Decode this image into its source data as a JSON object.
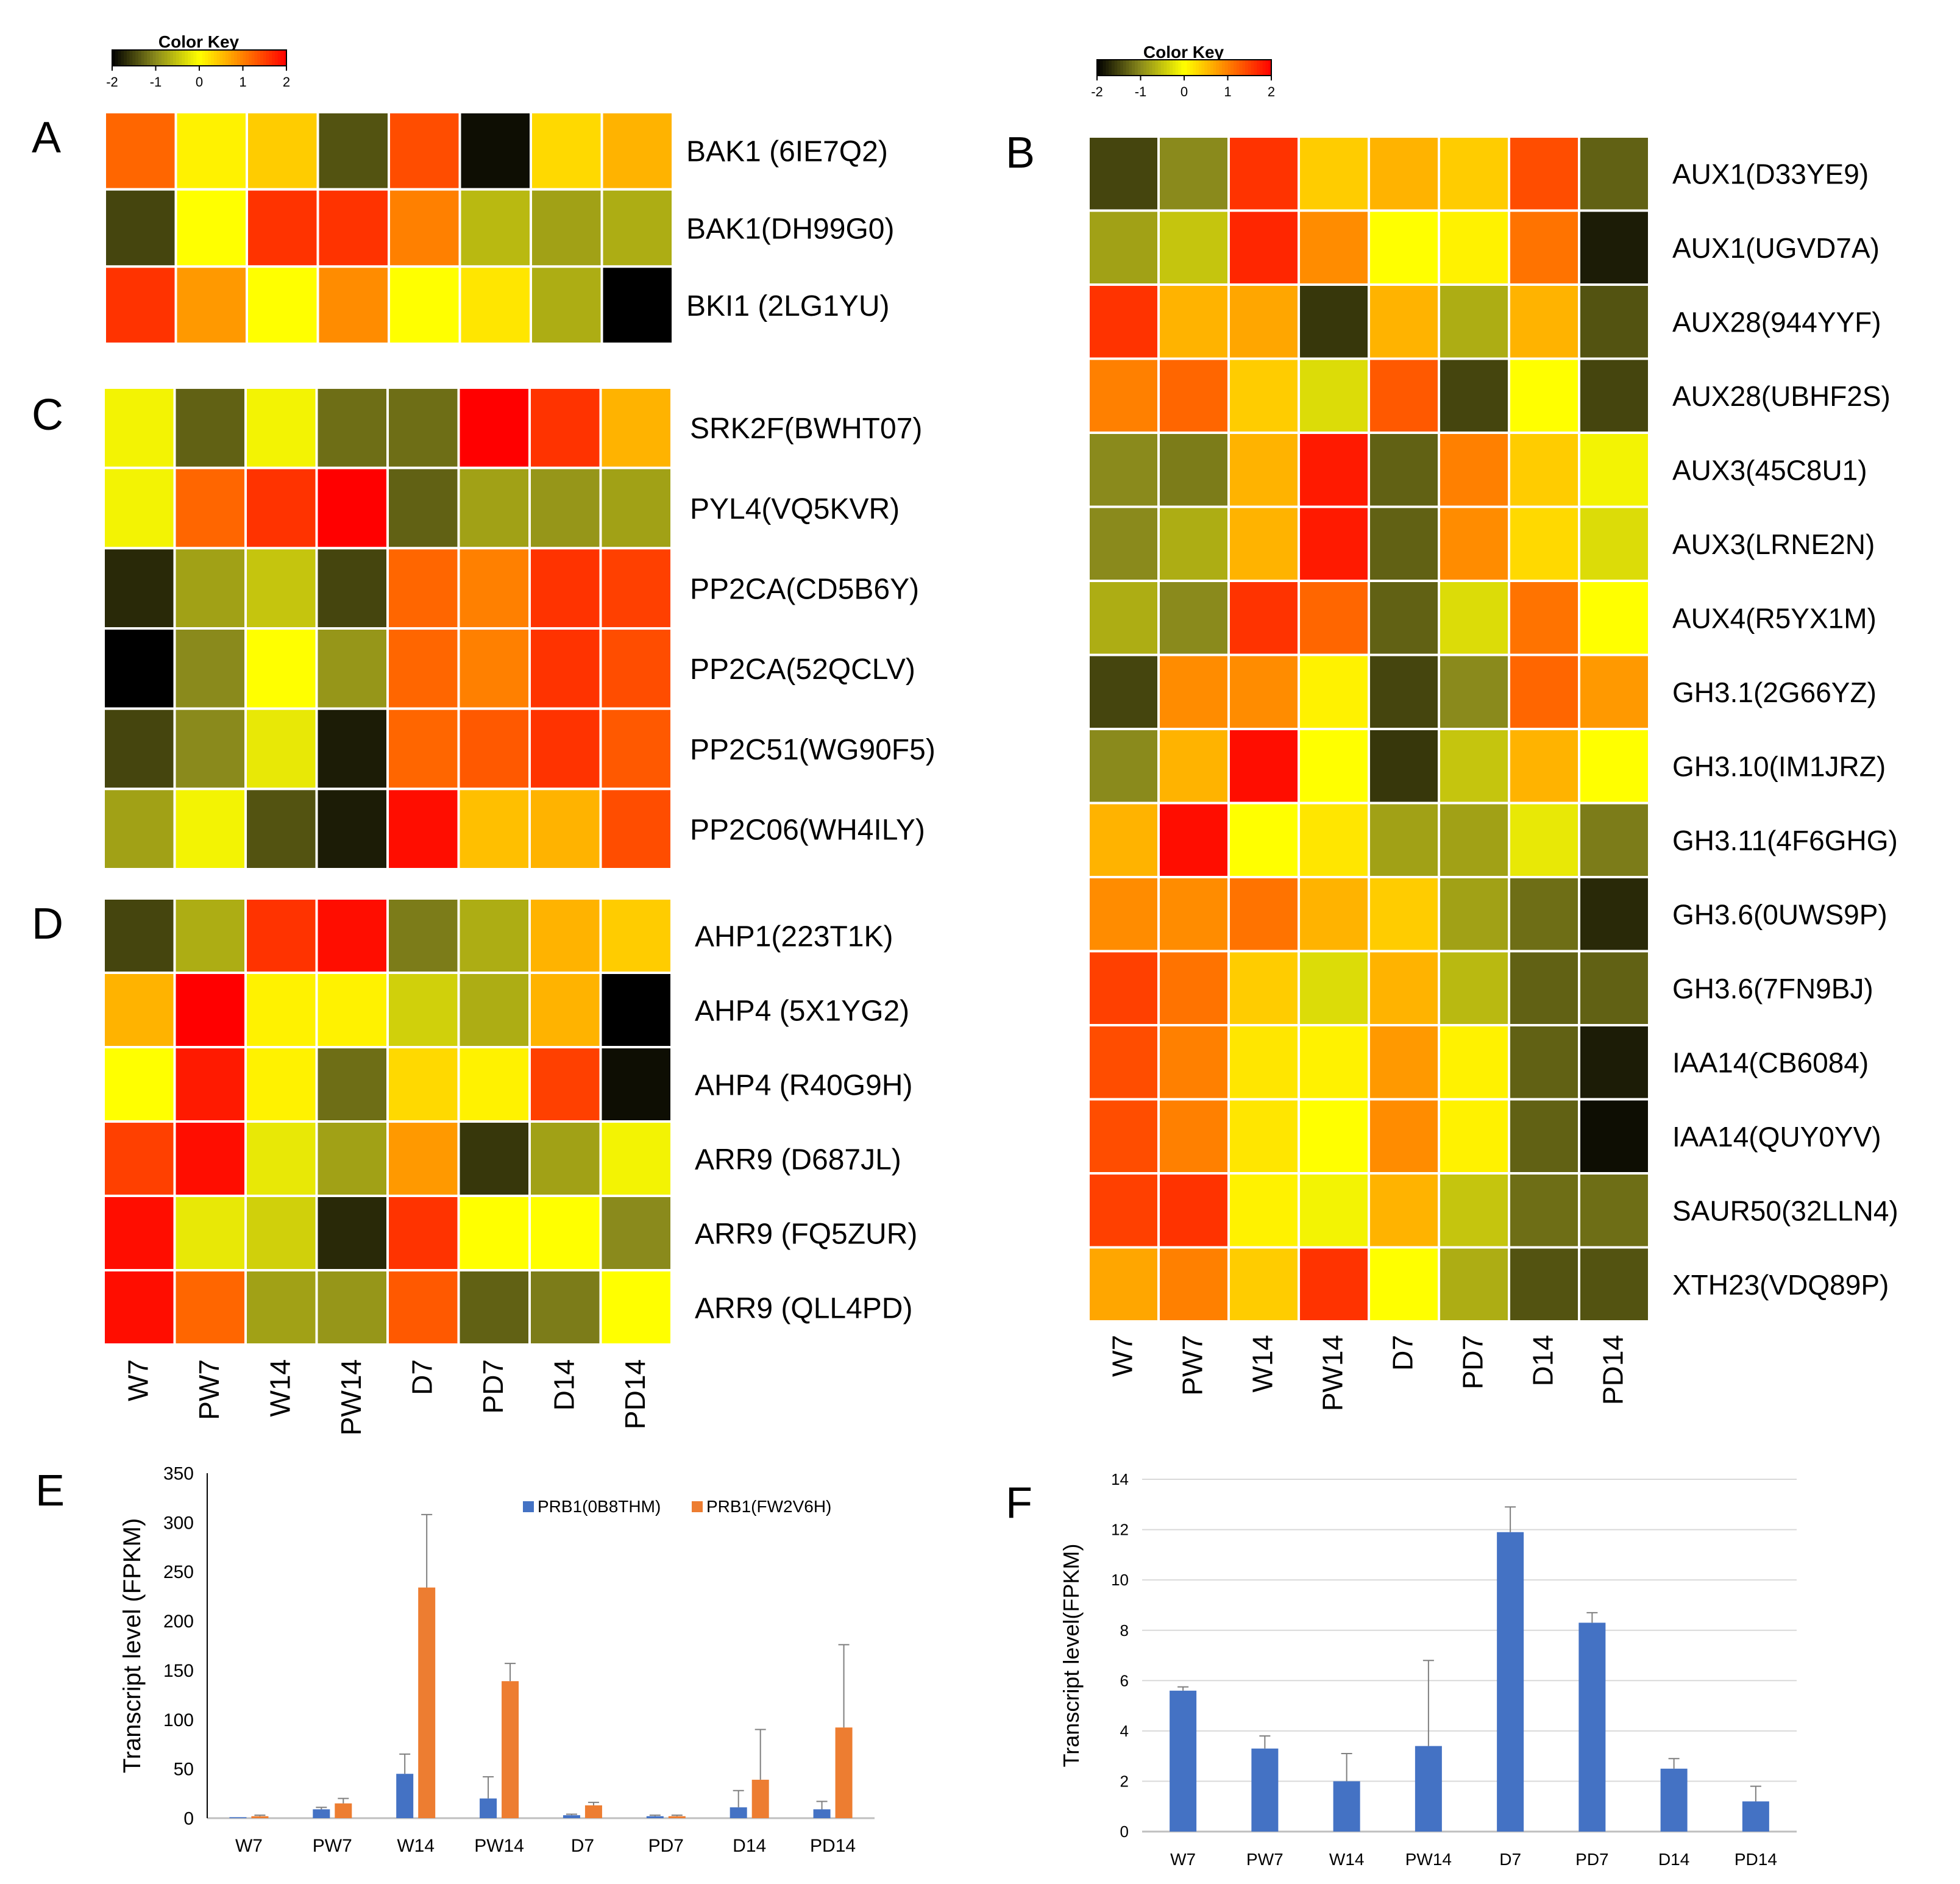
{
  "colors": {
    "low": "#000000",
    "midlow": "#8a8a1c",
    "mid": "#ffff00",
    "high": "#ff0000",
    "blue": "#4472c4",
    "orange": "#ed7d31"
  },
  "colorkey": {
    "title": "Color Key",
    "ticks": [
      "-2",
      "-1",
      "0",
      "1",
      "2"
    ]
  },
  "chart_data": [
    {
      "type": "heatmap",
      "panel": "A",
      "columns": [
        "W7",
        "PW7",
        "W14",
        "PW14",
        "D7",
        "PD7",
        "D14",
        "PD14"
      ],
      "rows": [
        "BAK1 (6IE7Q2)",
        "BAK1(DH99G0)",
        "BKI1 (2LG1YU)"
      ],
      "values": [
        [
          1.2,
          0.1,
          0.4,
          -1.4,
          1.4,
          -1.9,
          0.3,
          0.6
        ],
        [
          -1.5,
          0.0,
          1.6,
          1.6,
          1.0,
          -0.6,
          -0.8,
          -0.7
        ],
        [
          1.6,
          0.8,
          0.0,
          0.9,
          0.0,
          0.2,
          -0.7,
          -2.0
        ]
      ],
      "color_range": [
        -2,
        2
      ]
    },
    {
      "type": "heatmap",
      "panel": "B",
      "columns": [
        "W7",
        "PW7",
        "W14",
        "PW14",
        "D7",
        "PD7",
        "D14",
        "PD14"
      ],
      "rows": [
        "AUX1(D33YE9)",
        "AUX1(UGVD7A)",
        "AUX28(944YYF)",
        "AUX28(UBHF2S)",
        "AUX3(45C8U1)",
        "AUX3(LRNE2N)",
        "AUX4(R5YX1M)",
        "GH3.1(2G66YZ)",
        "GH3.10(IM1JRZ)",
        "GH3.11(4F6GHG)",
        "GH3.6(0UWS9P)",
        "GH3.6(7FN9BJ)",
        "IAA14(CB6084)",
        "IAA14(QUY0YV)",
        "SAUR50(32LLN4)",
        "XTH23(VDQ89P)"
      ],
      "values": [
        [
          -1.5,
          -1.0,
          1.6,
          0.4,
          0.6,
          0.4,
          1.4,
          -1.3
        ],
        [
          -0.8,
          -0.5,
          1.7,
          0.9,
          0.0,
          0.1,
          1.1,
          -1.8
        ],
        [
          1.6,
          0.6,
          0.7,
          -1.6,
          0.6,
          -0.7,
          0.6,
          -1.4
        ],
        [
          1.0,
          1.2,
          0.4,
          -0.3,
          1.3,
          -1.5,
          0.0,
          -1.5
        ],
        [
          -1.0,
          -1.1,
          0.6,
          1.8,
          -1.3,
          1.0,
          0.4,
          -0.1
        ],
        [
          -1.0,
          -0.7,
          0.6,
          1.8,
          -1.3,
          0.9,
          0.3,
          -0.3
        ],
        [
          -0.7,
          -1.0,
          1.6,
          1.2,
          -1.3,
          -0.3,
          1.1,
          0.0
        ],
        [
          -1.5,
          0.9,
          0.9,
          0.1,
          -1.5,
          -1.0,
          1.2,
          0.8
        ],
        [
          -1.0,
          0.6,
          1.9,
          0.0,
          -1.6,
          -0.5,
          0.6,
          0.0
        ],
        [
          0.6,
          1.9,
          0.0,
          0.2,
          -0.8,
          -0.8,
          -0.2,
          -1.1
        ],
        [
          0.9,
          0.9,
          1.1,
          0.6,
          0.4,
          -0.8,
          -1.2,
          -1.7
        ],
        [
          1.5,
          1.1,
          0.4,
          -0.3,
          0.6,
          -0.6,
          -1.3,
          -1.3
        ],
        [
          1.4,
          1.0,
          0.2,
          0.1,
          0.8,
          0.1,
          -1.3,
          -1.8
        ],
        [
          1.4,
          1.0,
          0.2,
          0.0,
          0.9,
          0.1,
          -1.3,
          -1.9
        ],
        [
          1.5,
          1.6,
          0.1,
          -0.1,
          0.6,
          -0.5,
          -1.2,
          -1.2
        ],
        [
          0.7,
          1.0,
          0.4,
          1.6,
          0.0,
          -0.7,
          -1.4,
          -1.4
        ]
      ],
      "color_range": [
        -2,
        2
      ]
    },
    {
      "type": "heatmap",
      "panel": "C",
      "columns": [
        "W7",
        "PW7",
        "W14",
        "PW14",
        "D7",
        "PD7",
        "D14",
        "PD14"
      ],
      "rows": [
        "SRK2F(BWHT07)",
        "PYL4(VQ5KVR)",
        "PP2CA(CD5B6Y)",
        "PP2CA(52QCLV)",
        "PP2C51(WG90F5)",
        "PP2C06(WH4ILY)"
      ],
      "values": [
        [
          -0.1,
          -1.3,
          -0.1,
          -1.2,
          -1.2,
          2.0,
          1.6,
          0.6
        ],
        [
          -0.1,
          1.2,
          1.6,
          2.0,
          -1.3,
          -0.8,
          -0.9,
          -0.8
        ],
        [
          -1.7,
          -0.8,
          -0.5,
          -1.5,
          1.2,
          1.0,
          1.6,
          1.5
        ],
        [
          -2.0,
          -1.0,
          0.0,
          -0.9,
          1.2,
          1.0,
          1.6,
          1.4
        ],
        [
          -1.5,
          -1.0,
          -0.2,
          -1.8,
          1.2,
          1.3,
          1.6,
          1.3
        ],
        [
          -0.8,
          -0.1,
          -1.4,
          -1.8,
          1.9,
          0.5,
          0.6,
          1.4
        ]
      ],
      "color_range": [
        -2,
        2
      ]
    },
    {
      "type": "heatmap",
      "panel": "D",
      "columns": [
        "W7",
        "PW7",
        "W14",
        "PW14",
        "D7",
        "PD7",
        "D14",
        "PD14"
      ],
      "rows": [
        "AHP1(223T1K)",
        "AHP4 (5X1YG2)",
        "AHP4 (R40G9H)",
        "ARR9 (D687JL)",
        "ARR9 (FQ5ZUR)",
        "ARR9 (QLL4PD)"
      ],
      "values": [
        [
          -1.5,
          -0.7,
          1.6,
          1.9,
          -1.1,
          -0.7,
          0.6,
          0.4
        ],
        [
          0.6,
          2.0,
          0.1,
          0.1,
          -0.4,
          -0.7,
          0.6,
          -2.0
        ],
        [
          0.0,
          1.8,
          0.1,
          -1.2,
          0.3,
          0.1,
          1.5,
          -1.9
        ],
        [
          1.5,
          1.9,
          -0.2,
          -0.8,
          0.8,
          -1.6,
          -0.8,
          -0.1
        ],
        [
          1.9,
          -0.2,
          -0.4,
          -1.7,
          1.6,
          0.0,
          0.0,
          -1.0
        ],
        [
          1.9,
          1.2,
          -0.8,
          -0.9,
          1.3,
          -1.3,
          -1.1,
          0.0
        ]
      ],
      "color_range": [
        -2,
        2
      ]
    },
    {
      "type": "bar",
      "panel": "E",
      "categories": [
        "W7",
        "PW7",
        "W14",
        "PW14",
        "D7",
        "PD7",
        "D14",
        "PD14"
      ],
      "series": [
        {
          "name": "PRB1(0B8THM)",
          "values": [
            1,
            9,
            45,
            20,
            3,
            2,
            11,
            9
          ],
          "errors": [
            0,
            2,
            20,
            22,
            1,
            1,
            17,
            8
          ]
        },
        {
          "name": "PRB1(FW2V6H)",
          "values": [
            2,
            15,
            234,
            139,
            13,
            2,
            39,
            92
          ],
          "errors": [
            1,
            5,
            74,
            18,
            3,
            1,
            51,
            84
          ]
        }
      ],
      "ylabel": "Transcript level (FPKM)",
      "yticks": [
        "0",
        "50",
        "100",
        "150",
        "200",
        "250",
        "300",
        "350"
      ],
      "ylim": [
        0,
        350
      ]
    },
    {
      "type": "bar",
      "panel": "F",
      "categories": [
        "W7",
        "PW7",
        "W14",
        "PW14",
        "D7",
        "PD7",
        "D14",
        "PD14"
      ],
      "series": [
        {
          "name": "",
          "values": [
            5.6,
            3.3,
            2.0,
            3.4,
            11.9,
            8.3,
            2.5,
            1.2
          ],
          "errors": [
            0.15,
            0.5,
            1.1,
            3.4,
            1.0,
            0.4,
            0.4,
            0.6
          ]
        }
      ],
      "ylabel": "Transcript level(FPKM)",
      "yticks": [
        "0",
        "2",
        "4",
        "6",
        "8",
        "10",
        "12",
        "14"
      ],
      "ylim": [
        0,
        14
      ]
    }
  ]
}
